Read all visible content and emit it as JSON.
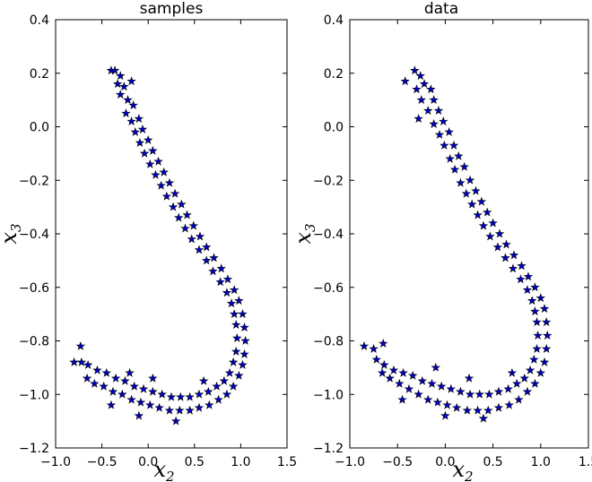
{
  "chart_data": [
    {
      "type": "scatter",
      "title": "samples",
      "xlabel": "x",
      "xlabel_sub": "2",
      "ylabel": "x",
      "ylabel_sub": "3",
      "xlim": [
        -1.0,
        1.5
      ],
      "ylim": [
        -1.2,
        0.4
      ],
      "xticks": [
        -1.0,
        -0.5,
        0.0,
        0.5,
        1.0,
        1.5
      ],
      "yticks": [
        -1.2,
        -1.0,
        -0.8,
        -0.6,
        -0.4,
        -0.2,
        0.0,
        0.2,
        0.4
      ],
      "xtick_labels": [
        "−1.0",
        "−0.5",
        "0.0",
        "0.5",
        "1.0",
        "1.5"
      ],
      "ytick_labels": [
        "−1.2",
        "−1.0",
        "−0.8",
        "−0.6",
        "−0.4",
        "−0.2",
        "0.0",
        "0.2",
        "0.4"
      ],
      "marker": "star",
      "marker_color": "#0000c8",
      "grid": false,
      "points": [
        [
          -0.4,
          0.21
        ],
        [
          -0.36,
          0.21
        ],
        [
          -0.3,
          0.19
        ],
        [
          -0.33,
          0.16
        ],
        [
          -0.26,
          0.15
        ],
        [
          -0.18,
          0.17
        ],
        [
          -0.3,
          0.12
        ],
        [
          -0.22,
          0.1
        ],
        [
          -0.16,
          0.08
        ],
        [
          -0.24,
          0.05
        ],
        [
          -0.18,
          0.02
        ],
        [
          -0.1,
          0.03
        ],
        [
          -0.14,
          -0.02
        ],
        [
          -0.06,
          -0.01
        ],
        [
          -0.09,
          -0.06
        ],
        [
          0.0,
          -0.05
        ],
        [
          -0.04,
          -0.1
        ],
        [
          0.05,
          -0.09
        ],
        [
          0.02,
          -0.14
        ],
        [
          0.11,
          -0.13
        ],
        [
          0.08,
          -0.18
        ],
        [
          0.17,
          -0.17
        ],
        [
          0.14,
          -0.22
        ],
        [
          0.23,
          -0.21
        ],
        [
          0.2,
          -0.26
        ],
        [
          0.29,
          -0.25
        ],
        [
          0.27,
          -0.3
        ],
        [
          0.36,
          -0.29
        ],
        [
          0.33,
          -0.34
        ],
        [
          0.42,
          -0.33
        ],
        [
          0.4,
          -0.38
        ],
        [
          0.49,
          -0.37
        ],
        [
          0.47,
          -0.42
        ],
        [
          0.56,
          -0.41
        ],
        [
          0.55,
          -0.46
        ],
        [
          0.63,
          -0.45
        ],
        [
          0.63,
          -0.5
        ],
        [
          0.71,
          -0.49
        ],
        [
          0.7,
          -0.54
        ],
        [
          0.79,
          -0.53
        ],
        [
          0.78,
          -0.58
        ],
        [
          0.86,
          -0.57
        ],
        [
          0.85,
          -0.62
        ],
        [
          0.93,
          -0.61
        ],
        [
          0.9,
          -0.66
        ],
        [
          0.98,
          -0.65
        ],
        [
          0.93,
          -0.7
        ],
        [
          1.02,
          -0.7
        ],
        [
          0.95,
          -0.74
        ],
        [
          1.04,
          -0.75
        ],
        [
          0.96,
          -0.79
        ],
        [
          1.05,
          -0.8
        ],
        [
          0.95,
          -0.84
        ],
        [
          1.04,
          -0.85
        ],
        [
          0.92,
          -0.88
        ],
        [
          1.02,
          -0.89
        ],
        [
          0.88,
          -0.92
        ],
        [
          0.98,
          -0.93
        ],
        [
          0.82,
          -0.95
        ],
        [
          0.92,
          -0.97
        ],
        [
          0.74,
          -0.97
        ],
        [
          0.85,
          -1.0
        ],
        [
          0.65,
          -0.99
        ],
        [
          0.76,
          -1.02
        ],
        [
          0.55,
          -1.0
        ],
        [
          0.66,
          -1.04
        ],
        [
          0.45,
          -1.01
        ],
        [
          0.55,
          -1.05
        ],
        [
          0.35,
          -1.01
        ],
        [
          0.45,
          -1.06
        ],
        [
          0.25,
          -1.01
        ],
        [
          0.34,
          -1.06
        ],
        [
          0.15,
          -1.0
        ],
        [
          0.23,
          -1.06
        ],
        [
          0.05,
          -0.99
        ],
        [
          0.12,
          -1.05
        ],
        [
          -0.05,
          -0.98
        ],
        [
          0.02,
          -1.04
        ],
        [
          -0.15,
          -0.97
        ],
        [
          -0.08,
          -1.03
        ],
        [
          -0.25,
          -0.95
        ],
        [
          -0.18,
          -1.02
        ],
        [
          -0.35,
          -0.94
        ],
        [
          -0.28,
          -1.0
        ],
        [
          -0.45,
          -0.92
        ],
        [
          -0.38,
          -0.99
        ],
        [
          -0.55,
          -0.91
        ],
        [
          -0.48,
          -0.97
        ],
        [
          -0.65,
          -0.89
        ],
        [
          -0.58,
          -0.96
        ],
        [
          -0.72,
          -0.88
        ],
        [
          -0.66,
          -0.94
        ],
        [
          -0.8,
          -0.88
        ],
        [
          -0.73,
          -0.82
        ],
        [
          -0.1,
          -1.08
        ],
        [
          0.3,
          -1.1
        ],
        [
          0.6,
          -0.95
        ],
        [
          -0.2,
          -0.92
        ],
        [
          0.05,
          -0.94
        ],
        [
          -0.4,
          -1.04
        ]
      ]
    },
    {
      "type": "scatter",
      "title": "data",
      "xlabel": "x",
      "xlabel_sub": "2",
      "ylabel": "x",
      "ylabel_sub": "3",
      "xlim": [
        -1.0,
        1.5
      ],
      "ylim": [
        -1.2,
        0.4
      ],
      "xticks": [
        -1.0,
        -0.5,
        0.0,
        0.5,
        1.0,
        1.5
      ],
      "yticks": [
        -1.2,
        -1.0,
        -0.8,
        -0.6,
        -0.4,
        -0.2,
        0.0,
        0.2,
        0.4
      ],
      "xtick_labels": [
        "−1.0",
        "−0.5",
        "0.0",
        "0.5",
        "1.0",
        "1.5"
      ],
      "ytick_labels": [
        "−1.2",
        "−1.0",
        "−0.8",
        "−0.6",
        "−0.4",
        "−0.2",
        "0.0",
        "0.2",
        "0.4"
      ],
      "marker": "star",
      "marker_color": "#0000c8",
      "grid": false,
      "points": [
        [
          -0.32,
          0.21
        ],
        [
          -0.26,
          0.19
        ],
        [
          -0.42,
          0.17
        ],
        [
          -0.22,
          0.16
        ],
        [
          -0.3,
          0.14
        ],
        [
          -0.15,
          0.14
        ],
        [
          -0.25,
          0.1
        ],
        [
          -0.12,
          0.1
        ],
        [
          -0.18,
          0.06
        ],
        [
          -0.07,
          0.06
        ],
        [
          -0.28,
          0.03
        ],
        [
          -0.12,
          0.01
        ],
        [
          -0.02,
          0.02
        ],
        [
          -0.06,
          -0.03
        ],
        [
          0.04,
          -0.02
        ],
        [
          -0.01,
          -0.07
        ],
        [
          0.09,
          -0.07
        ],
        [
          0.05,
          -0.12
        ],
        [
          0.14,
          -0.11
        ],
        [
          0.1,
          -0.16
        ],
        [
          0.2,
          -0.15
        ],
        [
          0.16,
          -0.21
        ],
        [
          0.26,
          -0.2
        ],
        [
          0.22,
          -0.25
        ],
        [
          0.32,
          -0.24
        ],
        [
          0.28,
          -0.29
        ],
        [
          0.38,
          -0.28
        ],
        [
          0.34,
          -0.33
        ],
        [
          0.44,
          -0.32
        ],
        [
          0.4,
          -0.37
        ],
        [
          0.5,
          -0.36
        ],
        [
          0.47,
          -0.41
        ],
        [
          0.57,
          -0.4
        ],
        [
          0.55,
          -0.45
        ],
        [
          0.64,
          -0.44
        ],
        [
          0.63,
          -0.49
        ],
        [
          0.72,
          -0.48
        ],
        [
          0.71,
          -0.53
        ],
        [
          0.8,
          -0.52
        ],
        [
          0.79,
          -0.57
        ],
        [
          0.87,
          -0.56
        ],
        [
          0.86,
          -0.61
        ],
        [
          0.94,
          -0.6
        ],
        [
          0.91,
          -0.65
        ],
        [
          1.0,
          -0.64
        ],
        [
          0.94,
          -0.69
        ],
        [
          1.04,
          -0.68
        ],
        [
          0.96,
          -0.73
        ],
        [
          1.06,
          -0.73
        ],
        [
          0.97,
          -0.78
        ],
        [
          1.07,
          -0.78
        ],
        [
          0.96,
          -0.83
        ],
        [
          1.06,
          -0.83
        ],
        [
          0.93,
          -0.87
        ],
        [
          1.04,
          -0.88
        ],
        [
          0.89,
          -0.91
        ],
        [
          1.0,
          -0.92
        ],
        [
          0.83,
          -0.94
        ],
        [
          0.94,
          -0.96
        ],
        [
          0.75,
          -0.96
        ],
        [
          0.86,
          -0.99
        ],
        [
          0.66,
          -0.98
        ],
        [
          0.77,
          -1.02
        ],
        [
          0.56,
          -0.99
        ],
        [
          0.67,
          -1.04
        ],
        [
          0.46,
          -1.0
        ],
        [
          0.56,
          -1.05
        ],
        [
          0.36,
          -1.0
        ],
        [
          0.45,
          -1.06
        ],
        [
          0.26,
          -1.0
        ],
        [
          0.34,
          -1.06
        ],
        [
          0.16,
          -0.99
        ],
        [
          0.23,
          -1.06
        ],
        [
          0.06,
          -0.98
        ],
        [
          0.12,
          -1.05
        ],
        [
          -0.04,
          -0.97
        ],
        [
          0.02,
          -1.04
        ],
        [
          -0.14,
          -0.96
        ],
        [
          -0.08,
          -1.03
        ],
        [
          -0.24,
          -0.95
        ],
        [
          -0.18,
          -1.02
        ],
        [
          -0.34,
          -0.93
        ],
        [
          -0.28,
          -1.0
        ],
        [
          -0.44,
          -0.92
        ],
        [
          -0.38,
          -0.98
        ],
        [
          -0.54,
          -0.91
        ],
        [
          -0.48,
          -0.96
        ],
        [
          -0.64,
          -0.89
        ],
        [
          -0.58,
          -0.94
        ],
        [
          -0.72,
          -0.87
        ],
        [
          -0.66,
          -0.92
        ],
        [
          -0.85,
          -0.82
        ],
        [
          -0.75,
          -0.83
        ],
        [
          -0.65,
          -0.81
        ],
        [
          0.0,
          -1.08
        ],
        [
          0.4,
          -1.09
        ],
        [
          0.7,
          -0.92
        ],
        [
          -0.1,
          -0.9
        ],
        [
          -0.45,
          -1.02
        ],
        [
          0.25,
          -0.94
        ]
      ]
    }
  ]
}
